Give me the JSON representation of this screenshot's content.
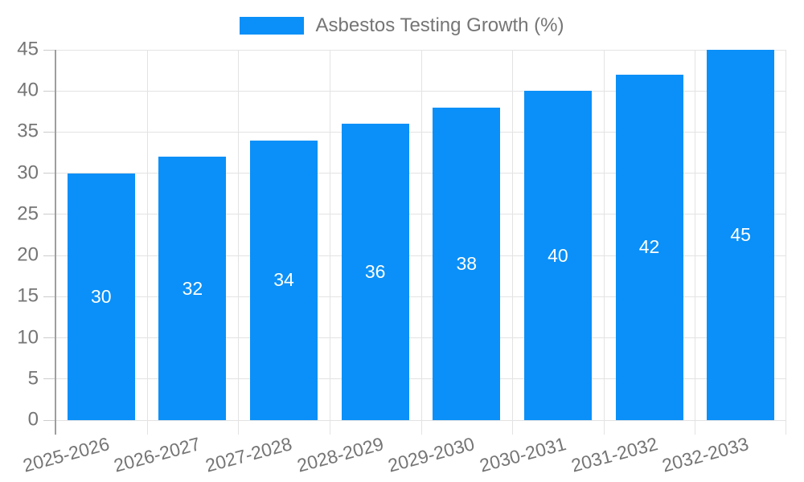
{
  "chart_data": {
    "type": "bar",
    "title": "",
    "categories": [
      "2025-2026",
      "2026-2027",
      "2027-2028",
      "2028-2029",
      "2029-2030",
      "2030-2031",
      "2031-2032",
      "2032-2033"
    ],
    "values": [
      30,
      32,
      34,
      36,
      38,
      40,
      42,
      45
    ],
    "bar_labels": [
      "30",
      "32",
      "34",
      "36",
      "38",
      "40",
      "42",
      "45"
    ],
    "xlabel": "",
    "ylabel": "",
    "ylim": [
      0,
      45
    ],
    "ytick_step": 5,
    "ytick_labels": [
      "0",
      "5",
      "10",
      "15",
      "20",
      "25",
      "30",
      "35",
      "40",
      "45"
    ],
    "grid": true,
    "legend_position": "top",
    "legend_entries": [
      "Asbestos Testing Growth (%)"
    ],
    "colors": {
      "bar": "#0A90F8",
      "bar_label": "#FFFFFF",
      "axis_text": "#757575",
      "grid": "#E3E3E3",
      "axis_line": "#9E9E9E",
      "tick": "#CCCCCC",
      "background": "#FFFFFF"
    }
  }
}
